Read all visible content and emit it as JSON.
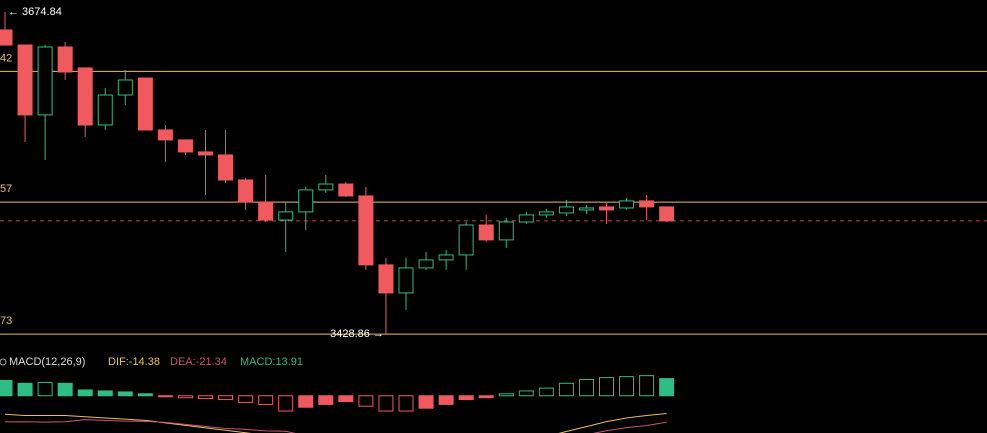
{
  "chart_data": {
    "type": "candlestick",
    "categories": [
      null,
      null,
      null,
      null,
      null,
      null,
      null,
      null,
      null,
      null,
      null,
      null,
      null,
      null,
      null,
      null,
      null,
      null,
      null,
      null,
      null,
      null,
      null,
      null,
      null,
      null,
      null,
      null,
      null,
      null,
      null,
      null,
      null,
      null
    ],
    "open": [
      3661.1,
      3649.6,
      3596.2,
      3648.1,
      3632.1,
      3588.5,
      3611.4,
      3624.4,
      3584.7,
      3577.1,
      3567.9,
      3565.6,
      3546.5,
      3529.7,
      3515.9,
      3522.1,
      3538.9,
      3543.4,
      3534.3,
      3481.6,
      3460.2,
      3479.3,
      3485.4,
      3489.2,
      3512.1,
      3500.7,
      3514.4,
      3519.8,
      3521.3,
      3523.6,
      3525.9,
      3525.1,
      3530.5,
      3525.9
    ],
    "high": [
      3674.84,
      3649.6,
      3649.6,
      3651.9,
      3632.1,
      3616.8,
      3630.5,
      3624.4,
      3588.5,
      3577.1,
      3584.7,
      3584.7,
      3548.0,
      3550.3,
      3529.7,
      3541.2,
      3550.3,
      3545.0,
      3541.2,
      3486.9,
      3486.9,
      3491.5,
      3493.0,
      3514.4,
      3519.8,
      3517.5,
      3522.1,
      3524.4,
      3531.2,
      3527.4,
      3528.9,
      3532.8,
      3535.0,
      3525.9
    ],
    "low": [
      3649.6,
      3575.5,
      3561.8,
      3622.9,
      3579.3,
      3584.7,
      3603.8,
      3584.7,
      3560.3,
      3565.6,
      3535.0,
      3544.2,
      3523.6,
      3514.4,
      3491.5,
      3508.3,
      3536.6,
      3533.5,
      3477.8,
      3428.86,
      3447.2,
      3477.8,
      3477.8,
      3477.8,
      3499.1,
      3494.5,
      3512.9,
      3517.5,
      3519.0,
      3520.5,
      3512.9,
      3523.6,
      3515.9,
      3514.4
    ],
    "close": [
      3649.6,
      3596.2,
      3648.1,
      3629.0,
      3588.5,
      3611.4,
      3622.9,
      3584.7,
      3577.1,
      3567.9,
      3565.6,
      3546.5,
      3529.7,
      3515.9,
      3522.1,
      3538.9,
      3543.4,
      3534.3,
      3481.6,
      3460.2,
      3479.3,
      3485.4,
      3489.2,
      3512.1,
      3500.7,
      3514.4,
      3519.8,
      3522.1,
      3525.9,
      3525.1,
      3523.6,
      3530.5,
      3525.9,
      3515.2
    ],
    "up_color": "#2ebd85",
    "down_color": "#f05a5f",
    "ylim": [
      3420.4,
      3684.0
    ],
    "levels": [
      {
        "value": 3629.42,
        "label": "42"
      },
      {
        "value": 3529.57,
        "label": "57"
      },
      {
        "value": 3428.73,
        "label": "73"
      }
    ],
    "level_color": "#e8c15b",
    "high_label": "← 3674.84",
    "low_label": "3428.86 →",
    "macd": {
      "title": "MACD(12,26,9)",
      "dif_label": "DIF:-14.38",
      "dea_label": "DEA:-21.34",
      "macd_label": "MACD:13.91",
      "histogram": [
        12.4,
        10.1,
        10.8,
        10.1,
        4.7,
        3.9,
        3.1,
        1.6,
        -0.8,
        -1.6,
        -2.3,
        -3.1,
        -5.4,
        -7.0,
        -12.4,
        -9.3,
        -7.0,
        -4.7,
        -8.5,
        -12.4,
        -12.4,
        -10.1,
        -7.0,
        -3.1,
        -1.6,
        1.6,
        3.9,
        6.2,
        10.1,
        13.2,
        14.7,
        15.5,
        16.3,
        13.91
      ],
      "dif": [
        -15,
        -16,
        -16,
        -16,
        -17,
        -18,
        -19,
        -20,
        -22,
        -24,
        -26,
        -28,
        -30,
        -32,
        -35,
        -37,
        -38,
        -39,
        -41,
        -44,
        -46,
        -46,
        -45,
        -44,
        -42,
        -39,
        -36,
        -33,
        -29,
        -25,
        -21,
        -18,
        -16,
        -14.38
      ],
      "dea": [
        -21.2,
        -21.1,
        -21.4,
        -21.1,
        -19.4,
        -20.0,
        -20.6,
        -20.8,
        -21.6,
        -23.2,
        -24.9,
        -26.5,
        -27.3,
        -28.5,
        -28.8,
        -32.4,
        -34.5,
        -36.7,
        -36.8,
        -37.8,
        -39.8,
        -41.0,
        -41.5,
        -42.5,
        -41.2,
        -39.8,
        -38.0,
        -36.1,
        -34.1,
        -31.6,
        -28.4,
        -25.8,
        -24.2,
        -21.34
      ],
      "dif_color": "#e8c15b",
      "dea_color": "#d0507a",
      "ylim": [
        -30.2,
        22.5
      ]
    }
  }
}
